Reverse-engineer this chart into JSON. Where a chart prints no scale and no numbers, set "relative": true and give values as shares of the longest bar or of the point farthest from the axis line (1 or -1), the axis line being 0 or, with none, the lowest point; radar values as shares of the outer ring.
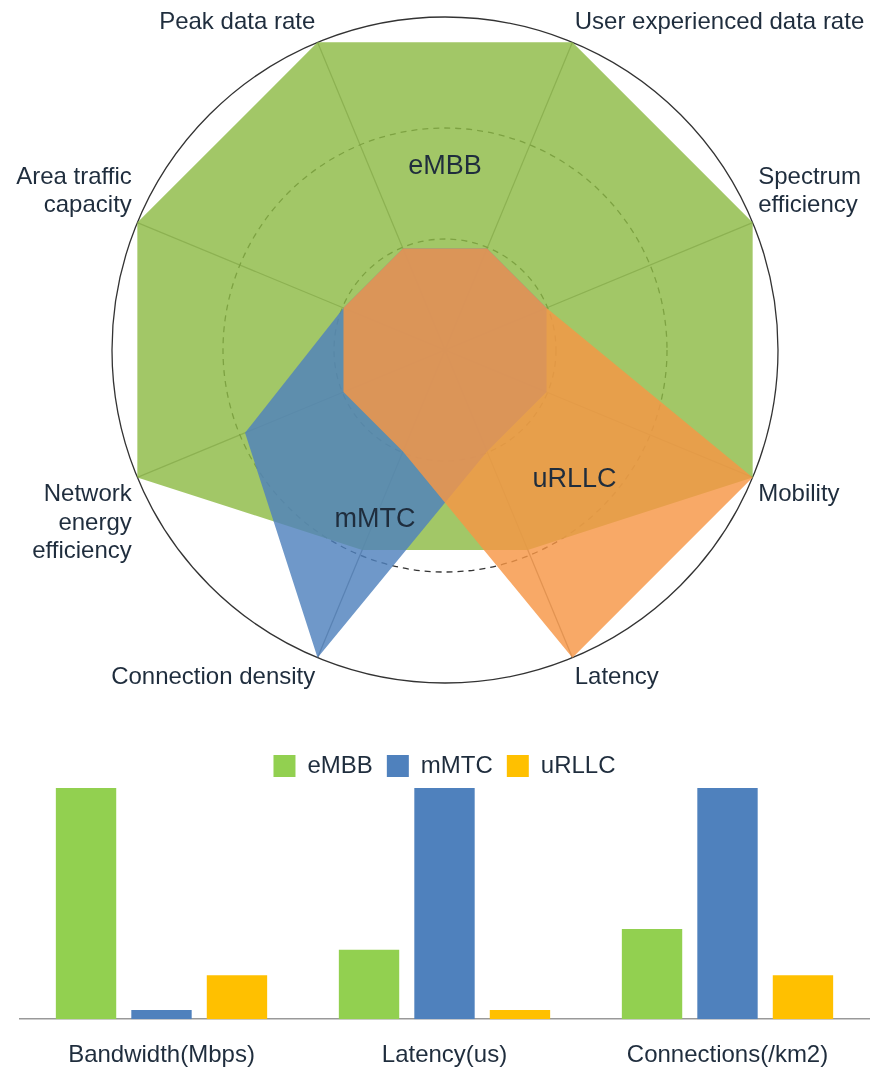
{
  "chart_data": [
    {
      "type": "radar",
      "relative": true,
      "grid": true,
      "legend": false,
      "categories": [
        "Peak data rate",
        "User experienced data rate",
        "Spectrum efficiency",
        "Mobility",
        "Latency",
        "Connection density",
        "Network energy efficiency",
        "Area traffic capacity"
      ],
      "series": [
        {
          "name": "eMBB",
          "color": "#8dbb45",
          "values": [
            1,
            1,
            1,
            1,
            0.65,
            0.65,
            1,
            1
          ]
        },
        {
          "name": "mMTC",
          "color": "#4f81bd",
          "values": [
            0.33,
            0.33,
            0.33,
            0.33,
            0.33,
            1,
            0.65,
            0.33
          ]
        },
        {
          "name": "uRLLC",
          "color": "#f79646",
          "values": [
            0.33,
            0.33,
            0.33,
            1,
            1,
            0.33,
            0.33,
            0.33
          ]
        }
      ]
    },
    {
      "type": "bar",
      "relative": true,
      "legend": "top",
      "grid": false,
      "categories": [
        "Bandwidth(Mbps)",
        "Latency(us)",
        "Connections(/km2)"
      ],
      "series": [
        {
          "name": "eMBB",
          "color": "#92d050",
          "values": [
            1,
            0.3,
            0.39
          ]
        },
        {
          "name": "mMTC",
          "color": "#4f81bd",
          "values": [
            0.04,
            1,
            1
          ]
        },
        {
          "name": "uRLLC",
          "color": "#ffc000",
          "values": [
            0.19,
            0.04,
            0.19
          ]
        }
      ]
    }
  ]
}
